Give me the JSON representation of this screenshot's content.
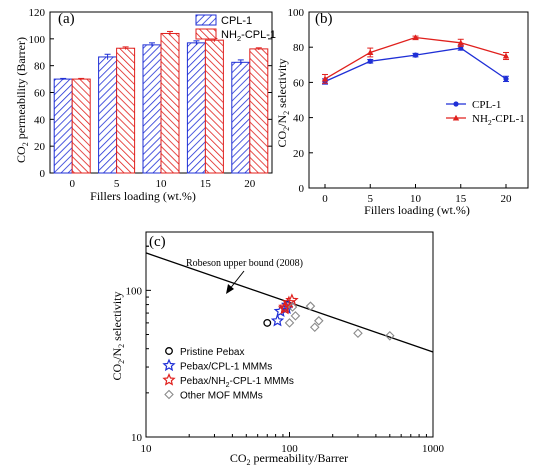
{
  "chart_data": [
    {
      "type": "bar",
      "panel_label": "(a)",
      "categories": [
        "0",
        "5",
        "10",
        "15",
        "20"
      ],
      "series": [
        {
          "name": "CPL-1",
          "values": [
            70,
            86.5,
            95.5,
            97,
            82.5
          ],
          "errors": [
            0.5,
            2,
            1.5,
            1.5,
            1.8
          ],
          "color": "#1f2fd6"
        },
        {
          "name": "NH2-CPL-1",
          "values": [
            70,
            93,
            104,
            99,
            92.5
          ],
          "errors": [
            0.5,
            1,
            1.5,
            1.2,
            0.8
          ],
          "color": "#e0201d"
        }
      ],
      "legend_entries": [
        {
          "text": "CPL-1"
        },
        {
          "base": "NH",
          "sub": "2",
          "rest": "-CPL-1"
        }
      ],
      "xlabel": "Fillers loading (wt.%)",
      "ylabel": {
        "a": "CO",
        "sub": "2",
        "b": " permeability (Barrer)"
      },
      "ylim": [
        0,
        120
      ],
      "yticks": [
        "0",
        "20",
        "40",
        "60",
        "80",
        "100",
        "120"
      ],
      "legend_position": "top-right"
    },
    {
      "type": "line",
      "panel_label": "(b)",
      "x": [
        0,
        5,
        10,
        15,
        20
      ],
      "xticks": [
        "0",
        "5",
        "10",
        "15",
        "20"
      ],
      "series": [
        {
          "name": "CPL-1",
          "values": [
            60.5,
            72,
            75.5,
            79.5,
            62
          ],
          "errors": [
            1.5,
            1,
            1,
            1.2,
            1.5
          ],
          "marker": "circle",
          "color": "#1f2fd6"
        },
        {
          "name": "NH2-CPL-1",
          "values": [
            62,
            77,
            85.5,
            82.5,
            75
          ],
          "errors": [
            2.5,
            2.5,
            0.8,
            2,
            2
          ],
          "marker": "triangle",
          "color": "#e0201d"
        }
      ],
      "legend_entries": [
        {
          "text": "CPL-1"
        },
        {
          "base": "NH",
          "sub": "2",
          "rest": "-CPL-1"
        }
      ],
      "xlabel": "Fillers loading (wt.%)",
      "ylabel": {
        "a": "CO",
        "sub1": "2",
        "b": "/N",
        "sub2": "2",
        "c": " selectivity"
      },
      "ylim": [
        0,
        100
      ],
      "yticks": [
        "0",
        "20",
        "40",
        "60",
        "80",
        "100"
      ],
      "legend_position": "center-right"
    },
    {
      "type": "scatter",
      "panel_label": "(c)",
      "xscale": "log",
      "yscale": "log",
      "xlim": [
        10,
        1000
      ],
      "ylim": [
        10,
        250
      ],
      "xticks": [
        "10",
        "100",
        "1000"
      ],
      "yticks": [
        "10",
        "100"
      ],
      "xlabel": {
        "a": "CO",
        "sub": "2",
        "b": " permeability/Barrer"
      },
      "ylabel": {
        "a": "CO",
        "sub1": "2",
        "b": "/N",
        "sub2": "2",
        "c": " selectivity"
      },
      "upper_bound": {
        "label": "Robeson upper bound (2008)",
        "points": [
          [
            10,
            180
          ],
          [
            1000,
            38
          ]
        ]
      },
      "series": [
        {
          "name": "Pristine Pebax",
          "marker": "circle",
          "color": "#000000",
          "points": [
            [
              70,
              60
            ]
          ]
        },
        {
          "name": "Pebax/CPL-1 MMMs",
          "marker": "star",
          "color": "#1f2fd6",
          "points": [
            [
              86.5,
              72
            ],
            [
              95.5,
              75.5
            ],
            [
              97,
              79.5
            ],
            [
              82.5,
              62
            ]
          ]
        },
        {
          "name": "Pebax/NH2-CPL-1 MMMs",
          "marker": "star",
          "color": "#e0201d",
          "points": [
            [
              93,
              77
            ],
            [
              104,
              85.5
            ],
            [
              99,
              82.5
            ],
            [
              92.5,
              75
            ]
          ]
        },
        {
          "name": "Other MOF MMMs",
          "marker": "diamond",
          "color": "#8a8a8a",
          "points": [
            [
              105,
              77
            ],
            [
              100,
              60
            ],
            [
              110,
              67
            ],
            [
              140,
              78
            ],
            [
              150,
              56
            ],
            [
              160,
              62
            ],
            [
              300,
              51
            ],
            [
              500,
              49
            ]
          ]
        }
      ],
      "legend_entries": [
        {
          "text": "Pristine Pebax"
        },
        {
          "text": "Pebax/CPL-1 MMMs"
        },
        {
          "base": "Pebax/NH",
          "sub": "2",
          "rest": "-CPL-1 MMMs"
        },
        {
          "text": "Other MOF MMMs"
        }
      ],
      "legend_position": "bottom-left"
    }
  ]
}
